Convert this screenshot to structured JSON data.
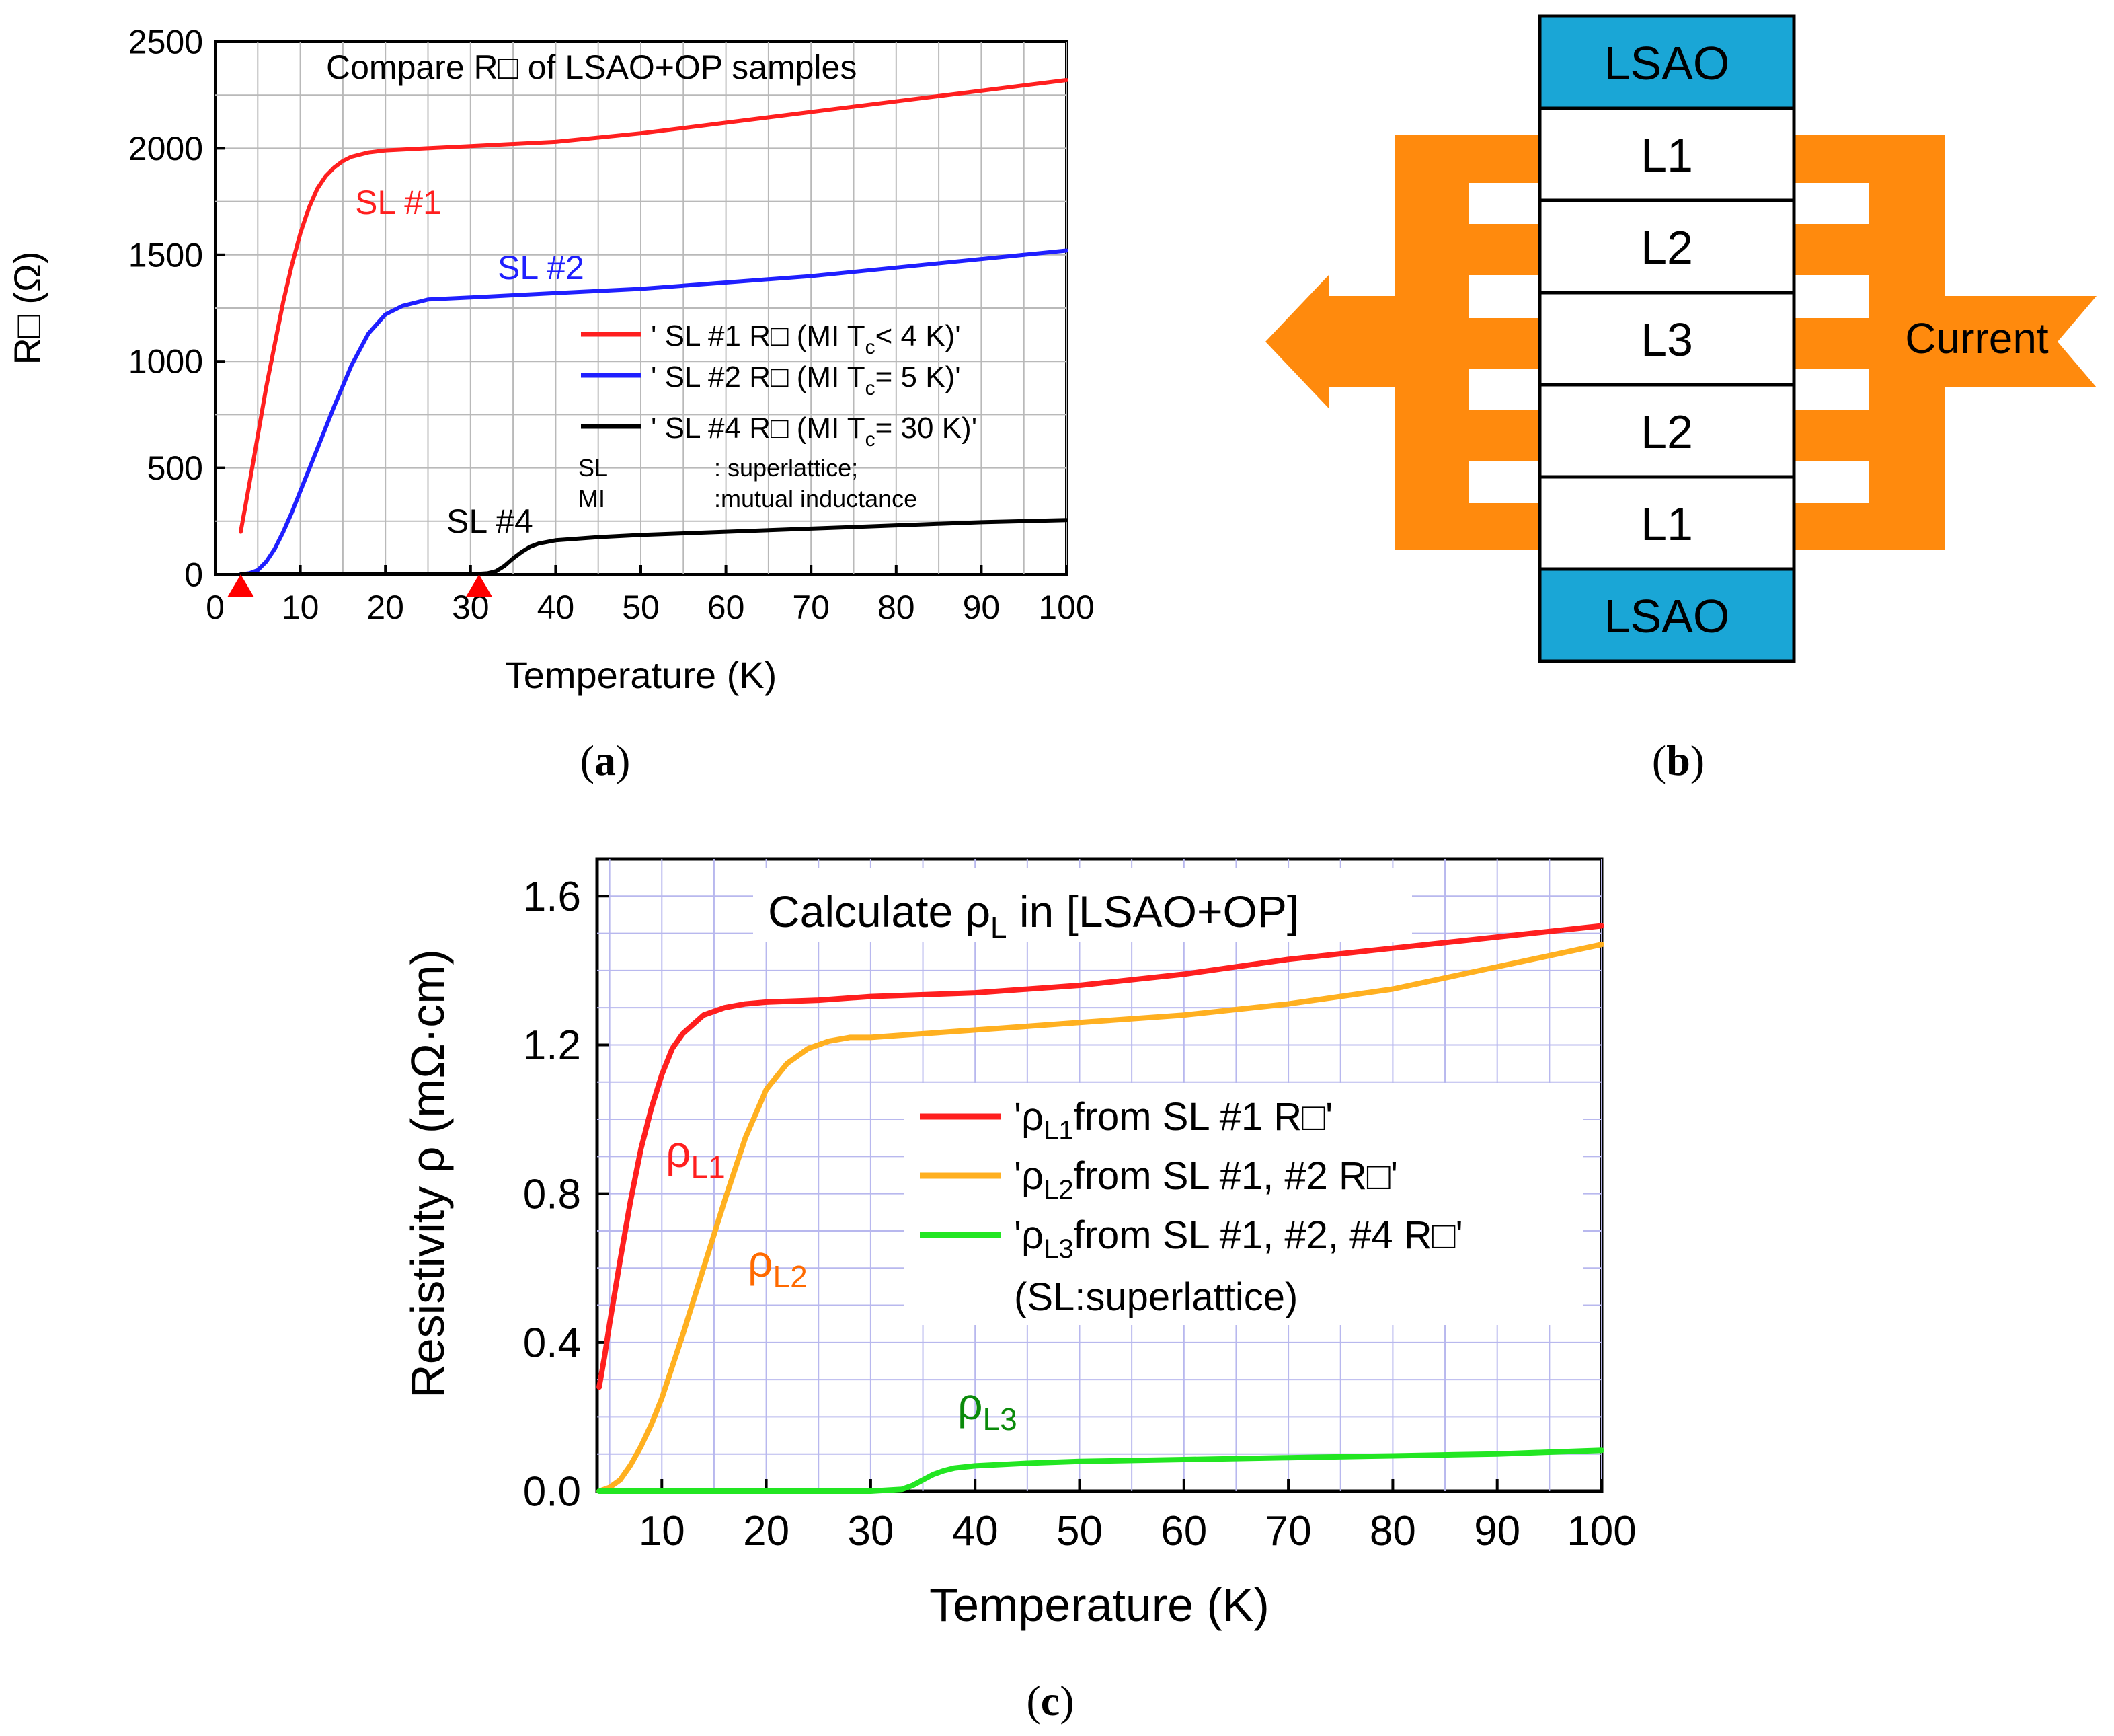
{
  "panels": {
    "a": {
      "label_open": "(",
      "label_letter": "a",
      "label_close": ")"
    },
    "b": {
      "label_open": "(",
      "label_letter": "b",
      "label_close": ")"
    },
    "c": {
      "label_open": "(",
      "label_letter": "c",
      "label_close": ")"
    }
  },
  "colors": {
    "red": "#ff1f1f",
    "blue": "#1f1fff",
    "black": "#000000",
    "orange": "#ffb020",
    "green": "#22e622",
    "dark_green": "#0a8a0a",
    "orange_text": "#ff6a00",
    "layer_blue": "#1aa6d6",
    "arrow_orange": "#ff8a0d",
    "grid": "#b9b9b9",
    "grid_blue": "#b8b8ee",
    "marker_red": "#ff0000"
  },
  "diagram": {
    "layers": [
      "LSAO",
      "L1",
      "L2",
      "L3",
      "L2",
      "L1",
      "LSAO"
    ],
    "current_label": "Current"
  },
  "chart_data": [
    {
      "id": "a",
      "type": "line",
      "title": "Compare R□ of LSAO+OP samples",
      "xlabel": "Temperature (K)",
      "ylabel": "R□ (Ω)",
      "xlim": [
        0,
        100
      ],
      "ylim": [
        0,
        2500
      ],
      "xticks": [
        0,
        10,
        20,
        30,
        40,
        50,
        60,
        70,
        80,
        90,
        100
      ],
      "yticks": [
        0,
        500,
        1000,
        1500,
        2000,
        2500
      ],
      "grid": true,
      "series": [
        {
          "name": "SL #1",
          "color_key": "red",
          "legend_prefix": "' SL #1 R□ (MI T",
          "legend_sub": "c",
          "legend_suffix": "<  4 K)'",
          "x": [
            3,
            4,
            5,
            6,
            7,
            8,
            9,
            10,
            11,
            12,
            13,
            14,
            15,
            16,
            18,
            20,
            25,
            30,
            40,
            50,
            60,
            70,
            80,
            90,
            100
          ],
          "y": [
            200,
            420,
            650,
            880,
            1080,
            1280,
            1450,
            1600,
            1720,
            1810,
            1870,
            1910,
            1940,
            1960,
            1980,
            1990,
            2000,
            2010,
            2030,
            2070,
            2120,
            2170,
            2220,
            2270,
            2320
          ]
        },
        {
          "name": "SL #2",
          "color_key": "blue",
          "legend_prefix": "' SL #2 R□ (MI T",
          "legend_sub": "c",
          "legend_suffix": "= 5 K)'",
          "x": [
            3,
            4,
            5,
            6,
            7,
            8,
            9,
            10,
            12,
            14,
            16,
            18,
            20,
            22,
            25,
            30,
            40,
            50,
            60,
            70,
            80,
            90,
            100
          ],
          "y": [
            0,
            5,
            20,
            60,
            120,
            200,
            290,
            390,
            590,
            790,
            980,
            1130,
            1220,
            1260,
            1290,
            1300,
            1320,
            1340,
            1370,
            1400,
            1440,
            1480,
            1520
          ]
        },
        {
          "name": "SL #4",
          "color_key": "black",
          "legend_prefix": "' SL #4 R□ (MI T",
          "legend_sub": "c",
          "legend_suffix": "=  30 K)'",
          "x": [
            3,
            10,
            20,
            30,
            32,
            33,
            34,
            35,
            36,
            37,
            38,
            40,
            45,
            50,
            60,
            70,
            80,
            90,
            100
          ],
          "y": [
            0,
            0,
            0,
            0,
            5,
            15,
            40,
            75,
            105,
            130,
            145,
            160,
            175,
            185,
            200,
            215,
            230,
            245,
            255
          ]
        }
      ],
      "series_labels": [
        "SL #1",
        "SL #2",
        "SL #4"
      ],
      "notes": [
        {
          "key": "SL",
          "text": ": superlattice;"
        },
        {
          "key": "MI",
          "text": ":mutual inductance"
        }
      ],
      "markers_x": [
        3,
        31
      ]
    },
    {
      "id": "c",
      "type": "line",
      "title_main": "Calculate ρ",
      "title_sub": "L",
      "title_tail": " in [LSAO+OP]",
      "xlabel": "Temperature (K)",
      "ylabel": "Resistivity ρ (mΩ·cm)",
      "xlim": [
        3.8,
        100
      ],
      "ylim": [
        0,
        1.7
      ],
      "xticks": [
        10,
        20,
        30,
        40,
        50,
        60,
        70,
        80,
        90,
        100
      ],
      "yticks": [
        0.0,
        0.4,
        0.8,
        1.2,
        1.6
      ],
      "ytick_labels": [
        "0.0",
        "0.4",
        "0.8",
        "1.2",
        "1.6"
      ],
      "grid": true,
      "series": [
        {
          "name": "ρ",
          "sub": "L1",
          "color_key": "red",
          "label_color_key": "red",
          "legend_prefix": "'ρ",
          "legend_sub": "L1",
          "legend_suffix": "from SL #1 R□'",
          "x": [
            4,
            4.5,
            5,
            6,
            7,
            8,
            9,
            10,
            11,
            12,
            14,
            16,
            18,
            20,
            25,
            30,
            40,
            50,
            60,
            70,
            80,
            90,
            100
          ],
          "y": [
            0.28,
            0.36,
            0.45,
            0.62,
            0.78,
            0.92,
            1.03,
            1.12,
            1.19,
            1.23,
            1.28,
            1.3,
            1.31,
            1.315,
            1.32,
            1.33,
            1.34,
            1.36,
            1.39,
            1.43,
            1.46,
            1.49,
            1.52
          ]
        },
        {
          "name": "ρ",
          "sub": "L2",
          "color_key": "orange",
          "label_color_key": "orange_text",
          "legend_prefix": "'ρ",
          "legend_sub": "L2",
          "legend_suffix": "from SL #1, #2 R□'",
          "x": [
            4,
            5,
            6,
            7,
            8,
            9,
            10,
            12,
            14,
            16,
            18,
            20,
            22,
            24,
            26,
            28,
            30,
            35,
            40,
            50,
            60,
            70,
            80,
            90,
            100
          ],
          "y": [
            0.0,
            0.01,
            0.03,
            0.07,
            0.12,
            0.18,
            0.25,
            0.42,
            0.6,
            0.78,
            0.95,
            1.08,
            1.15,
            1.19,
            1.21,
            1.22,
            1.22,
            1.23,
            1.24,
            1.26,
            1.28,
            1.31,
            1.35,
            1.41,
            1.47
          ]
        },
        {
          "name": "ρ",
          "sub": "L3",
          "color_key": "green",
          "label_color_key": "dark_green",
          "legend_prefix": "'ρ",
          "legend_sub": "L3",
          "legend_suffix": "from SL #1, #2, #4 R□'",
          "x": [
            4,
            10,
            20,
            30,
            33,
            34,
            35,
            36,
            37,
            38,
            40,
            45,
            50,
            60,
            70,
            80,
            90,
            100
          ],
          "y": [
            0.0,
            0.0,
            0.0,
            0.0,
            0.005,
            0.015,
            0.03,
            0.045,
            0.055,
            0.062,
            0.068,
            0.075,
            0.08,
            0.085,
            0.09,
            0.095,
            0.1,
            0.11
          ]
        }
      ],
      "legend_note": "(SL:superlattice)"
    }
  ]
}
